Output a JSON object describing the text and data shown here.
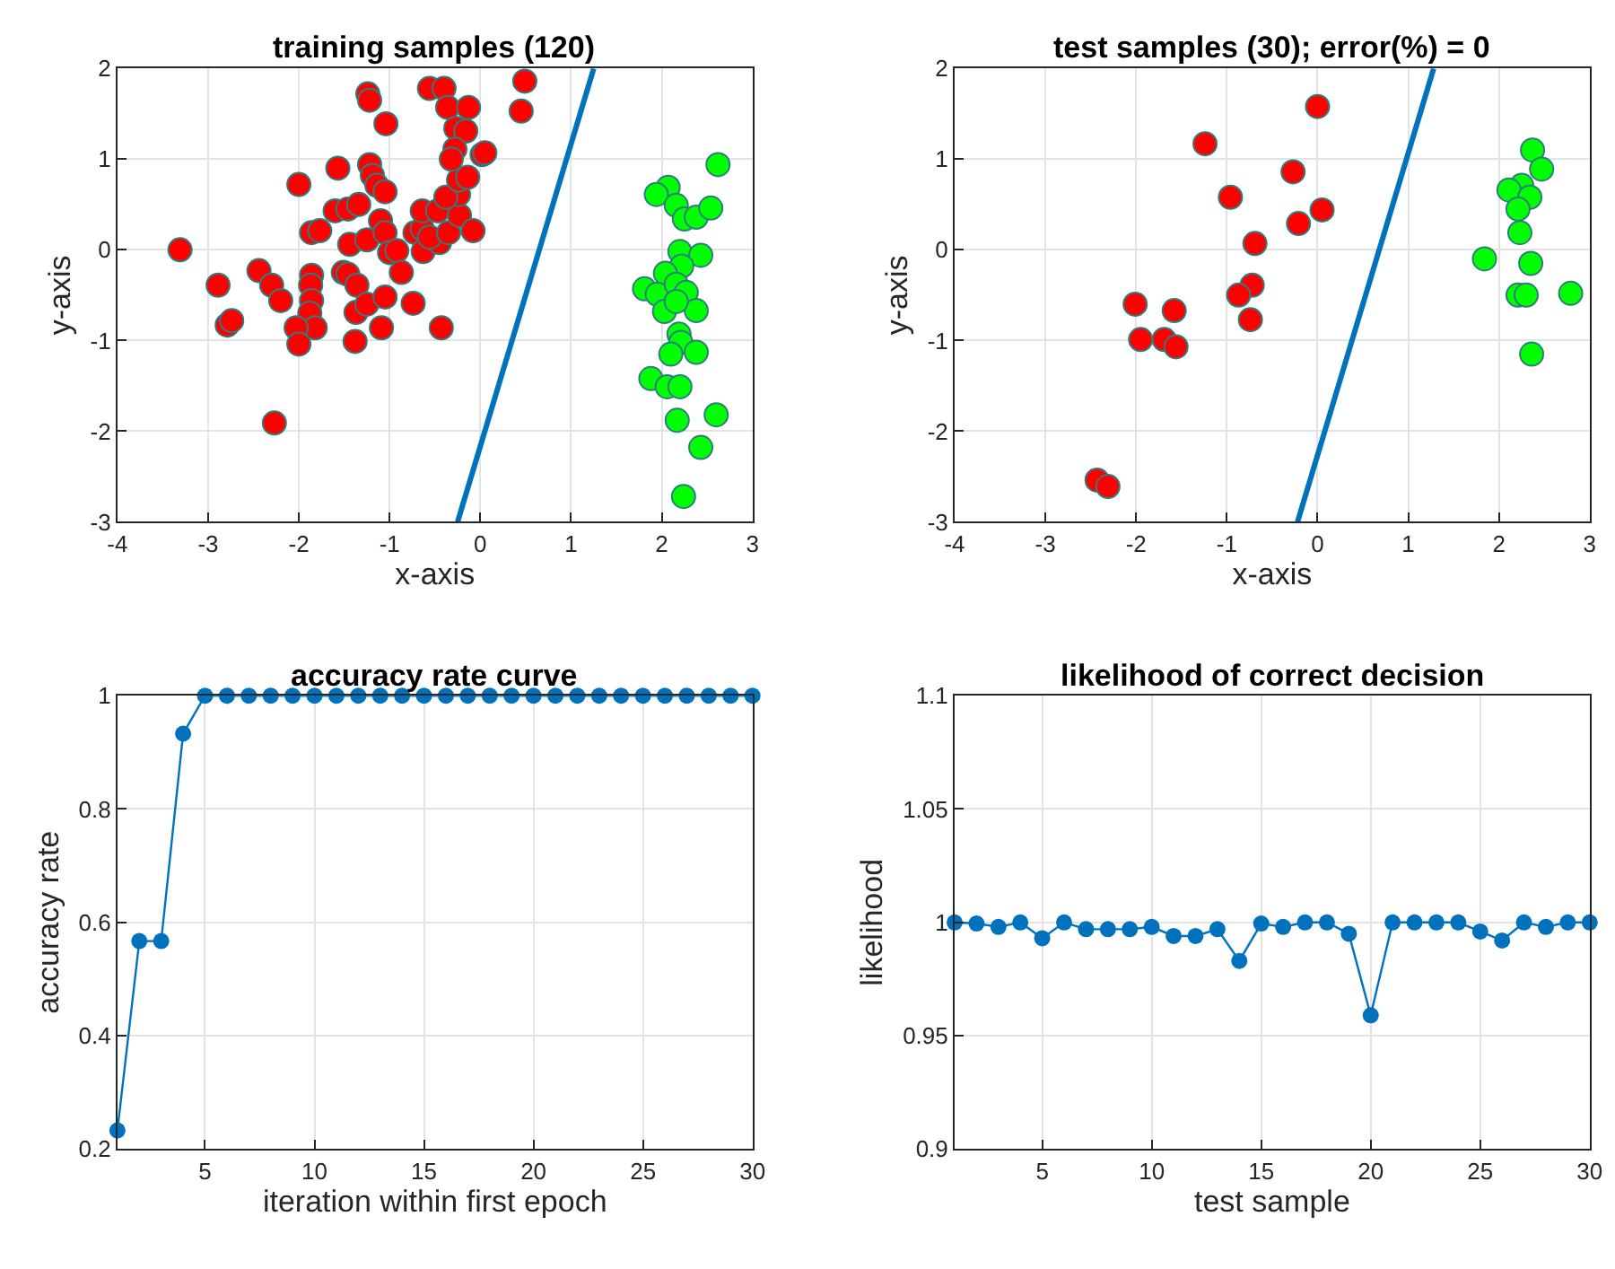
{
  "chart_data": [
    {
      "type": "scatter",
      "title": "training samples (120)",
      "xlabel": "x-axis",
      "ylabel": "y-axis",
      "xlim": [
        -4,
        3
      ],
      "ylim": [
        -3,
        2
      ],
      "xticks": [
        -4,
        -3,
        -2,
        -1,
        0,
        1,
        2,
        3
      ],
      "yticks": [
        -3,
        -2,
        -1,
        0,
        1,
        2
      ],
      "grid": true,
      "marker": "circle",
      "series": [
        {
          "color": "#ff0000",
          "x": [
            -3.31,
            -2.89,
            -2.79,
            -2.74,
            -2.44,
            -2.3,
            -2.2,
            -2.27,
            -2.0,
            -1.86,
            -1.87,
            -1.86,
            -1.88,
            -1.82,
            -2.03,
            -2.0,
            -1.86,
            -1.77,
            -1.57,
            -1.6,
            -1.46,
            -1.34,
            -1.51,
            -1.46,
            -1.36,
            -1.44,
            -1.25,
            -1.37,
            -1.25,
            -1.38,
            -1.24,
            -1.22,
            -1.22,
            -1.19,
            -1.14,
            -1.05,
            -1.1,
            -1.05,
            -1.09,
            -1.05,
            -1.04,
            -1.0,
            -0.92,
            -0.87,
            -0.74,
            -0.72,
            -0.64,
            -0.63,
            -0.45,
            -0.56,
            -0.64,
            -0.47,
            -0.56,
            -0.4,
            -0.43,
            -0.35,
            -0.23,
            -0.24,
            -0.38,
            -0.24,
            -0.14,
            -0.36,
            -0.13,
            -0.27,
            -0.16,
            -0.28,
            -0.32,
            0.02,
            0.05,
            -0.08,
            0.49,
            0.45
          ],
          "values": [
            0.0,
            -0.39,
            -0.83,
            -0.78,
            -0.23,
            -0.39,
            -0.56,
            -1.91,
            0.72,
            -0.28,
            -0.39,
            -0.56,
            -0.7,
            -0.86,
            -0.86,
            -1.04,
            0.19,
            0.21,
            0.9,
            0.43,
            0.45,
            0.5,
            -0.25,
            -0.27,
            -0.39,
            0.06,
            0.11,
            -0.69,
            -0.6,
            -1.01,
            1.72,
            1.65,
            0.94,
            0.82,
            0.71,
            0.64,
            0.32,
            0.19,
            -0.86,
            -0.52,
            1.39,
            -0.03,
            -0.01,
            -0.25,
            -0.59,
            0.19,
            0.23,
            -0.02,
            0.08,
            0.14,
            0.43,
            0.43,
            1.78,
            1.78,
            -0.86,
            0.19,
            0.38,
            0.61,
            0.58,
            0.77,
            0.8,
            1.57,
            1.57,
            1.34,
            1.31,
            1.11,
            1.0,
            1.05,
            1.07,
            0.21,
            1.86,
            1.53
          ]
        },
        {
          "color": "#00ff00",
          "x": [
            2.62,
            2.07,
            1.94,
            2.16,
            2.25,
            2.38,
            2.54,
            2.2,
            2.43,
            2.22,
            2.04,
            1.81,
            1.95,
            2.16,
            2.27,
            2.38,
            2.03,
            2.16,
            2.19,
            2.21,
            2.1,
            2.38,
            1.88,
            2.06,
            2.2,
            2.17,
            2.6,
            2.43,
            2.24
          ],
          "values": [
            0.94,
            0.69,
            0.61,
            0.49,
            0.34,
            0.36,
            0.46,
            -0.02,
            -0.06,
            -0.18,
            -0.26,
            -0.43,
            -0.49,
            -0.38,
            -0.47,
            -0.67,
            -0.68,
            -0.57,
            -0.93,
            -1.02,
            -1.15,
            -1.13,
            -1.42,
            -1.51,
            -1.51,
            -1.88,
            -1.82,
            -2.18,
            -2.72
          ]
        },
        {
          "type": "line",
          "marker": "none",
          "color": "#0072bd",
          "x": [
            -0.25,
            1.25
          ],
          "values": [
            -3,
            2
          ]
        }
      ]
    },
    {
      "type": "scatter",
      "title": "test samples (30); error(%) = 0",
      "xlabel": "x-axis",
      "ylabel": "y-axis",
      "xlim": [
        -4,
        3
      ],
      "ylim": [
        -3,
        2
      ],
      "xticks": [
        -4,
        -3,
        -2,
        -1,
        0,
        1,
        2,
        3
      ],
      "yticks": [
        -3,
        -2,
        -1,
        0,
        1,
        2
      ],
      "grid": true,
      "marker": "circle",
      "series": [
        {
          "color": "#ff0000",
          "x": [
            0.0,
            -1.24,
            -0.27,
            -0.96,
            0.05,
            -0.21,
            -0.69,
            -0.72,
            -0.87,
            -0.74,
            -2.01,
            -1.58,
            -1.95,
            -1.69,
            -1.56,
            -2.43,
            -2.31
          ],
          "values": [
            1.58,
            1.17,
            0.86,
            0.58,
            0.44,
            0.29,
            0.07,
            -0.39,
            -0.5,
            -0.77,
            -0.6,
            -0.67,
            -0.99,
            -0.99,
            -1.07,
            -2.54,
            -2.61
          ]
        },
        {
          "color": "#00ff00",
          "x": [
            2.37,
            2.47,
            2.25,
            2.11,
            2.34,
            2.21,
            2.23,
            1.84,
            2.35,
            2.21,
            2.3,
            2.79,
            2.36
          ],
          "values": [
            1.1,
            0.89,
            0.71,
            0.66,
            0.58,
            0.45,
            0.19,
            -0.1,
            -0.15,
            -0.5,
            -0.5,
            -0.48,
            -1.15
          ]
        },
        {
          "type": "line",
          "marker": "none",
          "color": "#0072bd",
          "x": [
            -0.22,
            1.28
          ],
          "values": [
            -3,
            2
          ]
        }
      ]
    },
    {
      "type": "line",
      "title": "accuracy rate curve",
      "xlabel": "iteration within first epoch",
      "ylabel": "accuracy rate",
      "xlim": [
        1,
        30
      ],
      "ylim": [
        0.2,
        1
      ],
      "xticks": [
        5,
        10,
        15,
        20,
        25,
        30
      ],
      "yticks": [
        0.2,
        0.4,
        0.6,
        0.8,
        1
      ],
      "grid": true,
      "marker": "circle",
      "series": [
        {
          "color": "#0072bd",
          "x": [
            1,
            2,
            3,
            4,
            5,
            6,
            7,
            8,
            9,
            10,
            11,
            12,
            13,
            14,
            15,
            16,
            17,
            18,
            19,
            20,
            21,
            22,
            23,
            24,
            25,
            26,
            27,
            28,
            29,
            30
          ],
          "values": [
            0.233,
            0.567,
            0.567,
            0.933,
            1,
            1,
            1,
            1,
            1,
            1,
            1,
            1,
            1,
            1,
            1,
            1,
            1,
            1,
            1,
            1,
            1,
            1,
            1,
            1,
            1,
            1,
            1,
            1,
            1,
            1
          ]
        }
      ]
    },
    {
      "type": "line",
      "title": "likelihood of correct decision",
      "xlabel": "test sample",
      "ylabel": "likelihood",
      "xlim": [
        1,
        30
      ],
      "ylim": [
        0.9,
        1.1
      ],
      "xticks": [
        5,
        10,
        15,
        20,
        25,
        30
      ],
      "yticks": [
        0.9,
        0.95,
        1,
        1.05,
        1.1
      ],
      "grid": true,
      "marker": "circle",
      "series": [
        {
          "color": "#0072bd",
          "x": [
            1,
            2,
            3,
            4,
            5,
            6,
            7,
            8,
            9,
            10,
            11,
            12,
            13,
            14,
            15,
            16,
            17,
            18,
            19,
            20,
            21,
            22,
            23,
            24,
            25,
            26,
            27,
            28,
            29,
            30
          ],
          "values": [
            1.0,
            0.9995,
            0.998,
            1.0,
            0.993,
            1.0,
            0.997,
            0.997,
            0.997,
            0.998,
            0.994,
            0.994,
            0.997,
            0.983,
            0.9995,
            0.998,
            1.0,
            1.0,
            0.995,
            0.959,
            1.0,
            1.0,
            1.0,
            1.0,
            0.996,
            0.992,
            1.0,
            0.998,
            1.0,
            1.0
          ]
        }
      ]
    }
  ]
}
